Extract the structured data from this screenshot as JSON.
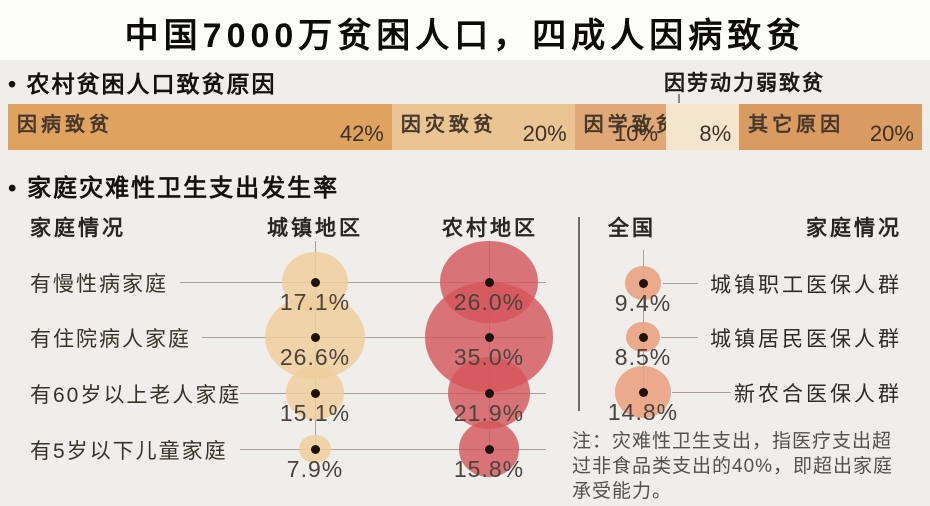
{
  "title": "中国7000万贫困人口，四成人因病致贫",
  "section1": {
    "bullet": "•",
    "heading": "农村贫困人口致贫原因",
    "callout_label": "因劳动力弱致贫",
    "segments": [
      {
        "label": "因病致贫",
        "value_label": "42%",
        "pct": 42,
        "color": "#dfa25f"
      },
      {
        "label": "因灾致贫",
        "value_label": "20%",
        "pct": 20,
        "color": "#ebc493"
      },
      {
        "label": "因学致贫",
        "value_label": "10%",
        "pct": 10,
        "color": "#dfa876"
      },
      {
        "label": "",
        "value_label": "8%",
        "pct": 8,
        "color": "#f3e5ce"
      },
      {
        "label": "其它原因",
        "value_label": "20%",
        "pct": 20,
        "color": "#d99b61"
      }
    ]
  },
  "section2": {
    "bullet": "•",
    "heading": "家庭灾难性卫生支出发生率",
    "col_headers": {
      "left": "家庭情况",
      "urban": "城镇地区",
      "rural": "农村地区",
      "national": "全国",
      "right": "家庭情况"
    },
    "rows": [
      {
        "label": "有慢性病家庭",
        "urban_label": "17.1%",
        "urban": 17.1,
        "rural_label": "26.0%",
        "rural": 26.0
      },
      {
        "label": "有住院病人家庭",
        "urban_label": "26.6%",
        "urban": 26.6,
        "rural_label": "35.0%",
        "rural": 35.0
      },
      {
        "label": "有60岁以上老人家庭",
        "urban_label": "15.1%",
        "urban": 15.1,
        "rural_label": "21.9%",
        "rural": 21.9
      },
      {
        "label": "有5岁以下儿童家庭",
        "urban_label": "7.9%",
        "urban": 7.9,
        "rural_label": "15.8%",
        "rural": 15.8
      }
    ],
    "national_rows": [
      {
        "value_label": "9.4%",
        "value": 9.4,
        "label": "城镇职工医保人群"
      },
      {
        "value_label": "8.5%",
        "value": 8.5,
        "label": "城镇居民医保人群"
      },
      {
        "value_label": "14.8%",
        "value": 14.8,
        "label": "新农合医保人群"
      }
    ],
    "note_lines": [
      "注：灾难性卫生支出，指医疗支出超",
      "过非食品类支出的40%，即超出家庭",
      "承受能力。"
    ]
  },
  "colors": {
    "background": "#f0eeea",
    "urban_bubble": "#f0ce9e",
    "rural_bubble": "#d4545a",
    "national_bubble": "#e9a17d",
    "dot": "#1d130b",
    "connector_line": "#a8a29a",
    "divider": "#6f6a63"
  },
  "chart_data": [
    {
      "type": "bar",
      "subtype": "horizontal-stacked-single-bar",
      "title": "农村贫困人口致贫原因",
      "categories": [
        "因病致贫",
        "因灾致贫",
        "因学致贫",
        "因劳动力弱致贫",
        "其它原因"
      ],
      "values": [
        42,
        20,
        10,
        8,
        20
      ],
      "unit": "%",
      "xlim": [
        0,
        100
      ],
      "data_labels": [
        "42%",
        "20%",
        "10%",
        "8%",
        "20%"
      ]
    },
    {
      "type": "scatter",
      "subtype": "bubble",
      "title": "家庭灾难性卫生支出发生率",
      "categories": [
        "有慢性病家庭",
        "有住院病人家庭",
        "有60岁以上老人家庭",
        "有5岁以下儿童家庭"
      ],
      "series": [
        {
          "name": "城镇地区",
          "values": [
            17.1,
            26.6,
            15.1,
            7.9
          ]
        },
        {
          "name": "农村地区",
          "values": [
            26.0,
            35.0,
            21.9,
            15.8
          ]
        }
      ],
      "national_series": {
        "name": "全国",
        "categories": [
          "城镇职工医保人群",
          "城镇居民医保人群",
          "新农合医保人群"
        ],
        "values": [
          9.4,
          8.5,
          14.8
        ]
      },
      "unit": "%",
      "size_encoding": "bubble area proportional to incidence rate",
      "note": "注：灾难性卫生支出，指医疗支出超过非食品类支出的40%，即超出家庭承受能力。"
    }
  ]
}
